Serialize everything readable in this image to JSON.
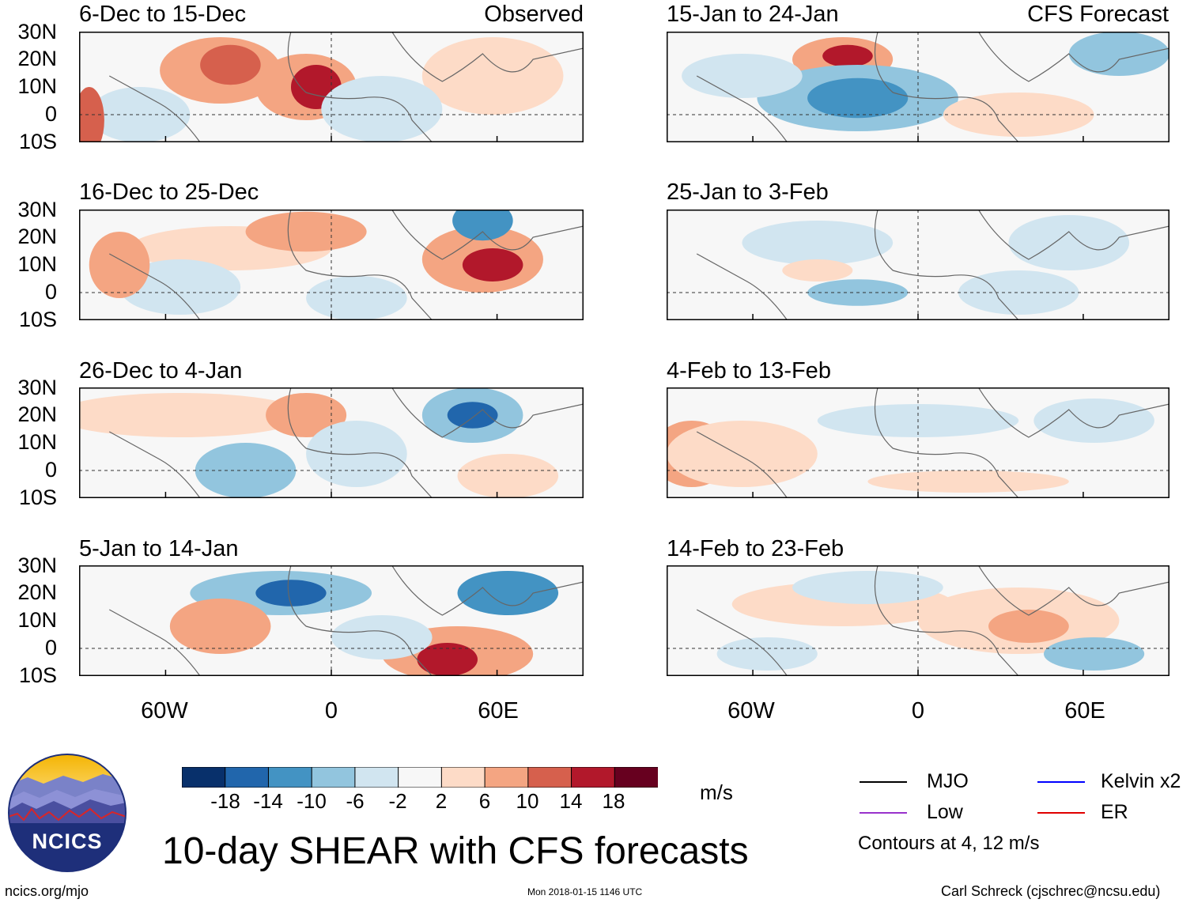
{
  "panels": [
    {
      "title": "6-Dec to 15-Dec",
      "tag": "Observed"
    },
    {
      "title": "16-Dec to 25-Dec",
      "tag": ""
    },
    {
      "title": "26-Dec to 4-Jan",
      "tag": ""
    },
    {
      "title": "5-Jan to 14-Jan",
      "tag": ""
    },
    {
      "title": "15-Jan to 24-Jan",
      "tag": "CFS Forecast"
    },
    {
      "title": "25-Jan to 3-Feb",
      "tag": ""
    },
    {
      "title": "4-Feb to 13-Feb",
      "tag": ""
    },
    {
      "title": "14-Feb to 23-Feb",
      "tag": ""
    }
  ],
  "lat_labels": [
    "30N",
    "20N",
    "10N",
    "0",
    "10S"
  ],
  "lon_labels": [
    "60W",
    "0",
    "60E"
  ],
  "colorbar": {
    "ticks": [
      "-18",
      "-14",
      "-10",
      "-6",
      "-2",
      "2",
      "6",
      "10",
      "14",
      "18"
    ],
    "colors": [
      "#08306b",
      "#2166ac",
      "#4393c3",
      "#92c5de",
      "#d1e5f0",
      "#f7f7f7",
      "#fddbc7",
      "#f4a582",
      "#d6604d",
      "#b2182b",
      "#67001f"
    ],
    "unit": "m/s"
  },
  "legend": {
    "items": [
      {
        "label": "MJO",
        "color": "#000000"
      },
      {
        "label": "Low",
        "color": "#9932cc"
      },
      {
        "label": "Kelvin x2",
        "color": "#0000ff"
      },
      {
        "label": "ER",
        "color": "#e00000"
      }
    ],
    "note": "Contours at 4, 12 m/s"
  },
  "logo": {
    "text": "NCICS"
  },
  "title": "10-day SHEAR with CFS forecasts",
  "footer": {
    "left": "ncics.org/mjo",
    "center": "Mon 2018-01-15 1146 UTC",
    "right": "Carl Schreck (cjschrec@ncsu.edu)"
  }
}
